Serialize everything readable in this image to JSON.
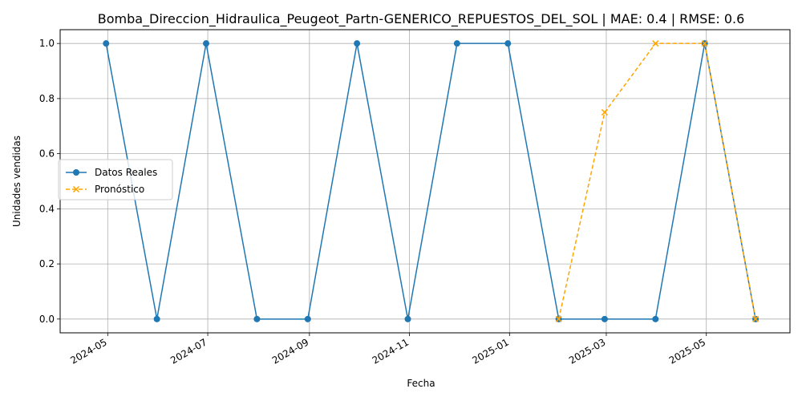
{
  "chart_data": {
    "type": "line",
    "title": "Bomba_Direccion_Hidraulica_Peugeot_Partn-GENERICO_REPUESTOS_DEL_SOL | MAE: 0.4 | RMSE: 0.6",
    "xlabel": "Fecha",
    "ylabel": "Unidades vendidas",
    "x_ticks": [
      "2024-05",
      "2024-07",
      "2024-09",
      "2024-11",
      "2025-01",
      "2025-03",
      "2025-05"
    ],
    "y_ticks": [
      "0.0",
      "0.2",
      "0.4",
      "0.6",
      "0.8",
      "1.0"
    ],
    "ylim": [
      -0.05,
      1.05
    ],
    "xlim": [
      "2024-04-02",
      "2025-06-21"
    ],
    "grid": true,
    "legend_position": "center-left",
    "series": [
      {
        "name": "Datos Reales",
        "color": "#1f77b4",
        "marker": "circle",
        "line_style": "solid",
        "x": [
          "2024-04-30",
          "2024-05-31",
          "2024-06-30",
          "2024-07-31",
          "2024-08-31",
          "2024-09-30",
          "2024-10-31",
          "2024-11-30",
          "2024-12-31",
          "2025-01-31",
          "2025-02-28",
          "2025-03-31",
          "2025-04-30",
          "2025-05-31"
        ],
        "values": [
          1,
          0,
          1,
          0,
          0,
          1,
          0,
          1,
          1,
          0,
          0,
          0,
          1,
          0
        ]
      },
      {
        "name": "Pronóstico",
        "color": "#ffa500",
        "marker": "x",
        "line_style": "dashed",
        "x": [
          "2025-01-31",
          "2025-02-28",
          "2025-03-31",
          "2025-04-30",
          "2025-05-31"
        ],
        "values": [
          0,
          0.75,
          1.0,
          1.0,
          0
        ]
      }
    ]
  }
}
